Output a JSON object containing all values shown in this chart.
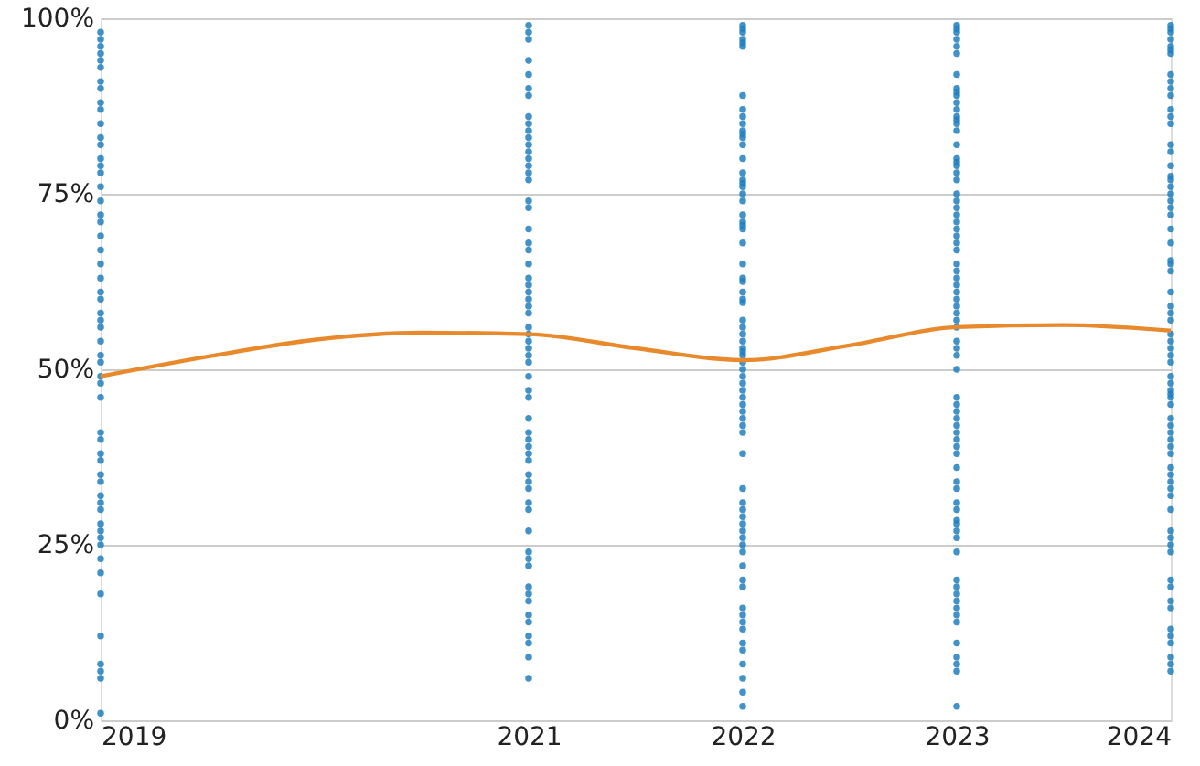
{
  "chart_data": {
    "type": "scatter",
    "xlim": [
      2019,
      2024
    ],
    "xticks": [
      2019,
      2021,
      2022,
      2023,
      2024
    ],
    "ylim": [
      0,
      100
    ],
    "yticks": [
      {
        "value": 0,
        "label": "0%"
      },
      {
        "value": 25,
        "label": "25%"
      },
      {
        "value": 50,
        "label": "50%"
      },
      {
        "value": 75,
        "label": "75%"
      },
      {
        "value": 100,
        "label": "100%"
      }
    ],
    "grid": "y",
    "marker": "circle",
    "series": [
      {
        "color": "#1f7fbf",
        "x": [
          2019,
          2019,
          2019,
          2019,
          2019,
          2019,
          2019,
          2019,
          2019,
          2019,
          2019,
          2019,
          2019,
          2019,
          2019,
          2019,
          2019,
          2019,
          2019,
          2019,
          2019,
          2019,
          2019,
          2019,
          2019,
          2019,
          2019,
          2019,
          2019,
          2019,
          2019,
          2019,
          2019,
          2019,
          2019,
          2019,
          2019,
          2019,
          2019,
          2019,
          2019,
          2019,
          2019,
          2019,
          2019,
          2019,
          2019,
          2019,
          2019,
          2019,
          2019,
          2019,
          2019,
          2019,
          2019,
          2019
        ],
        "values": [
          98,
          97,
          96,
          95,
          94,
          93,
          91,
          90,
          88,
          87,
          85,
          83,
          82,
          80,
          79,
          78,
          76,
          74,
          72,
          71,
          69,
          67,
          65,
          63,
          61,
          60,
          58,
          57,
          56,
          54,
          52,
          51,
          49,
          48,
          46,
          41,
          40,
          38,
          37,
          35,
          34,
          32,
          31,
          30,
          28,
          27,
          26,
          25,
          23,
          21,
          18,
          12,
          8,
          7,
          6,
          1
        ]
      },
      {
        "color": "#1f7fbf",
        "x": [
          2021,
          2021,
          2021,
          2021,
          2021,
          2021,
          2021,
          2021,
          2021,
          2021,
          2021,
          2021,
          2021,
          2021,
          2021,
          2021,
          2021,
          2021,
          2021,
          2021,
          2021,
          2021,
          2021,
          2021,
          2021,
          2021,
          2021,
          2021,
          2021,
          2021,
          2021,
          2021,
          2021,
          2021,
          2021,
          2021,
          2021,
          2021,
          2021,
          2021,
          2021,
          2021,
          2021,
          2021,
          2021,
          2021,
          2021,
          2021,
          2021,
          2021,
          2021,
          2021,
          2021,
          2021,
          2021,
          2021,
          2021,
          2021,
          2021,
          2021,
          2021,
          2021
        ],
        "values": [
          99,
          98,
          97,
          94,
          92,
          90,
          89,
          86,
          85,
          84,
          83,
          82,
          81,
          80,
          79,
          78,
          77,
          74,
          73,
          70,
          68,
          67,
          65,
          63,
          62,
          61,
          60,
          59,
          58,
          56,
          55,
          54,
          53,
          52,
          51,
          49,
          47,
          46,
          43,
          41,
          40,
          39,
          38,
          37,
          35,
          34,
          33,
          31,
          30,
          27,
          24,
          23,
          22,
          19,
          18,
          17,
          15,
          14,
          12,
          11,
          9,
          6
        ]
      },
      {
        "color": "#1f7fbf",
        "x": [
          2022,
          2022,
          2022,
          2022,
          2022,
          2022,
          2022,
          2022,
          2022,
          2022,
          2022,
          2022,
          2022,
          2022,
          2022,
          2022,
          2022,
          2022,
          2022,
          2022,
          2022,
          2022,
          2022,
          2022,
          2022,
          2022,
          2022,
          2022,
          2022,
          2022,
          2022,
          2022,
          2022,
          2022,
          2022,
          2022,
          2022,
          2022,
          2022,
          2022,
          2022,
          2022,
          2022,
          2022,
          2022,
          2022,
          2022,
          2022,
          2022,
          2022,
          2022,
          2022,
          2022,
          2022,
          2022,
          2022,
          2022,
          2022,
          2022,
          2022,
          2022,
          2022,
          2022,
          2022,
          2022,
          2022,
          2022,
          2022,
          2022,
          2022,
          2022,
          2022,
          2022
        ],
        "values": [
          99,
          98.5,
          98,
          97,
          96.5,
          96,
          89,
          87,
          86,
          85,
          84,
          83.5,
          83,
          82,
          80,
          78,
          77,
          76.5,
          76,
          75,
          74,
          72,
          71,
          70.5,
          70,
          68,
          65,
          63,
          62.5,
          61,
          60,
          59.5,
          57,
          56,
          55,
          54,
          53,
          52.5,
          52,
          51,
          50,
          49,
          48,
          47,
          46,
          45,
          44,
          43,
          42,
          41,
          38,
          33,
          31,
          30,
          29,
          28,
          27,
          26,
          25,
          24,
          22,
          20,
          19,
          16,
          15,
          14,
          13,
          11,
          10,
          8,
          6,
          4,
          2
        ]
      },
      {
        "color": "#1f7fbf",
        "x": [
          2023,
          2023,
          2023,
          2023,
          2023,
          2023,
          2023,
          2023,
          2023,
          2023,
          2023,
          2023,
          2023,
          2023,
          2023,
          2023,
          2023,
          2023,
          2023,
          2023,
          2023,
          2023,
          2023,
          2023,
          2023,
          2023,
          2023,
          2023,
          2023,
          2023,
          2023,
          2023,
          2023,
          2023,
          2023,
          2023,
          2023,
          2023,
          2023,
          2023,
          2023,
          2023,
          2023,
          2023,
          2023,
          2023,
          2023,
          2023,
          2023,
          2023,
          2023,
          2023,
          2023,
          2023,
          2023,
          2023,
          2023,
          2023,
          2023,
          2023,
          2023,
          2023,
          2023,
          2023,
          2023,
          2023,
          2023,
          2023,
          2023,
          2023,
          2023,
          2023,
          2023,
          2023,
          2023,
          2023
        ],
        "values": [
          99,
          98.5,
          98,
          97,
          96,
          95,
          92,
          90,
          89.5,
          89,
          88,
          87,
          86,
          85.5,
          85,
          84,
          82,
          80,
          79.5,
          79,
          78,
          77,
          75,
          74,
          73,
          72,
          71,
          70,
          69,
          68,
          67,
          65,
          64,
          63,
          62,
          61,
          60,
          59,
          58,
          57,
          56,
          54,
          53,
          52,
          50,
          46,
          45,
          44,
          43,
          42,
          41,
          40,
          39,
          38,
          36,
          34,
          33,
          31,
          30,
          28.5,
          28,
          27,
          26,
          24,
          20,
          19,
          18,
          17,
          16,
          15,
          14,
          11,
          9,
          8,
          7,
          2
        ]
      },
      {
        "color": "#1f7fbf",
        "x": [
          2024,
          2024,
          2024,
          2024,
          2024,
          2024,
          2024,
          2024,
          2024,
          2024,
          2024,
          2024,
          2024,
          2024,
          2024,
          2024,
          2024,
          2024,
          2024,
          2024,
          2024,
          2024,
          2024,
          2024,
          2024,
          2024,
          2024,
          2024,
          2024,
          2024,
          2024,
          2024,
          2024,
          2024,
          2024,
          2024,
          2024,
          2024,
          2024,
          2024,
          2024,
          2024,
          2024,
          2024,
          2024,
          2024,
          2024,
          2024,
          2024,
          2024,
          2024,
          2024,
          2024,
          2024,
          2024,
          2024,
          2024,
          2024,
          2024,
          2024,
          2024,
          2024,
          2024,
          2024,
          2024,
          2024,
          2024,
          2024,
          2024,
          2024
        ],
        "values": [
          99,
          98.5,
          98,
          97,
          96,
          95.5,
          95,
          92,
          91,
          90,
          89,
          87,
          86,
          85,
          82,
          81,
          79,
          77.5,
          77,
          76,
          75,
          74,
          73,
          72,
          70,
          68,
          65.5,
          65,
          64,
          61,
          59,
          58,
          57,
          55,
          54,
          53,
          52,
          51,
          49,
          48,
          47,
          46.5,
          46,
          45,
          43,
          42,
          41,
          40,
          39,
          38,
          36,
          35,
          34,
          33,
          32,
          30,
          27,
          26,
          25,
          24,
          20,
          19,
          17,
          16,
          13,
          12,
          11,
          9,
          8,
          7
        ]
      },
      {
        "type": "line",
        "color": "#e8892b",
        "line_style": "solid",
        "marker": "none",
        "x": [
          2019,
          2019.5,
          2020,
          2020.5,
          2021,
          2021.5,
          2022,
          2022.5,
          2023,
          2023.5,
          2024
        ],
        "values": [
          49,
          51.8,
          54.2,
          55.2,
          55,
          53,
          51.3,
          53.4,
          56,
          56.3,
          55.5
        ]
      }
    ]
  }
}
